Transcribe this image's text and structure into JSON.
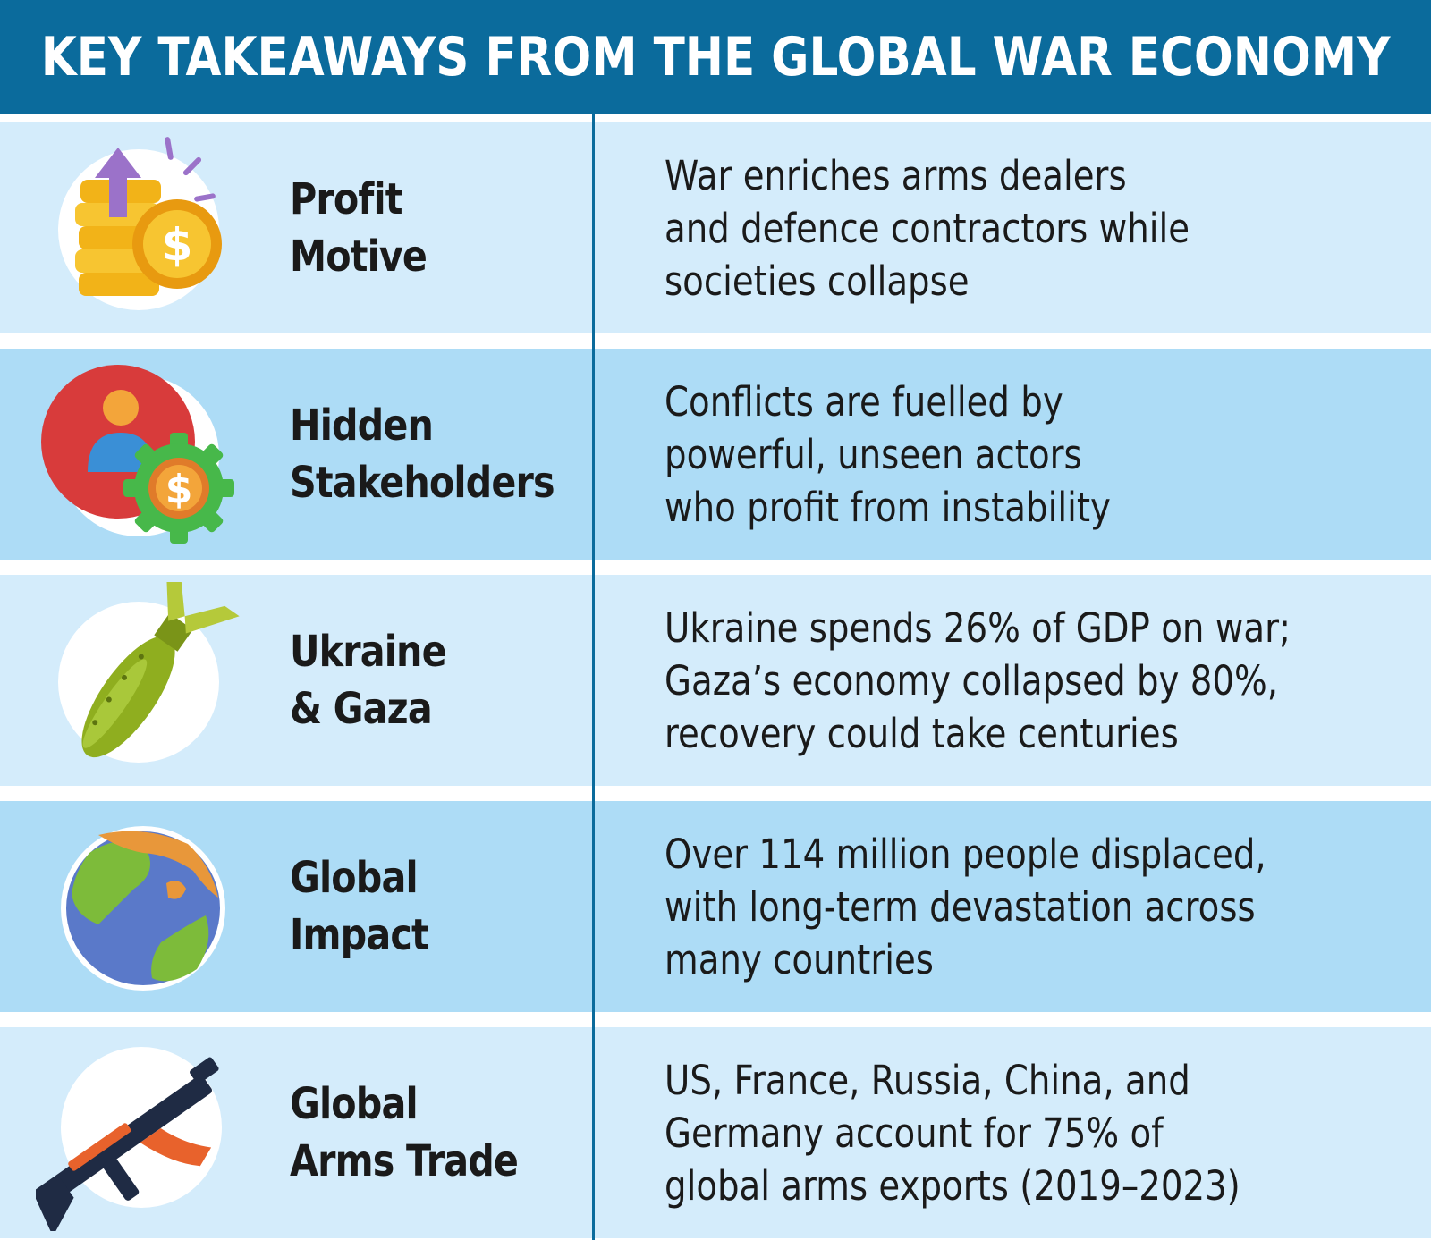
{
  "title": "KEY TAKEAWAYS FROM THE GLOBAL WAR ECONOMY",
  "rows": [
    {
      "icon": "coins-arrow-up-icon",
      "label": [
        "Profit",
        "Motive"
      ],
      "desc": [
        "War enriches arms dealers",
        "and defence contractors while",
        "societies collapse"
      ]
    },
    {
      "icon": "person-gear-dollar-icon",
      "label": [
        "Hidden",
        "Stakeholders"
      ],
      "desc": [
        "Conflicts are fuelled by",
        "powerful, unseen actors",
        "who profit from instability"
      ]
    },
    {
      "icon": "bomb-icon",
      "label": [
        "Ukraine",
        "& Gaza"
      ],
      "desc": [
        "Ukraine spends 26% of GDP on war;",
        "Gaza’s economy collapsed by 80%,",
        "recovery could take centuries"
      ]
    },
    {
      "icon": "globe-icon",
      "label": [
        "Global",
        "Impact"
      ],
      "desc": [
        "Over 114 million people displaced,",
        "with long-term devastation across",
        "many countries"
      ]
    },
    {
      "icon": "rifle-icon",
      "label": [
        "Global",
        "Arms Trade"
      ],
      "desc": [
        "US, France, Russia, China, and",
        "Germany account for 75% of",
        "global arms exports (2019–2023)"
      ]
    }
  ],
  "colors": {
    "header": "#0b6b9c",
    "row_light": "#d4ecfb",
    "row_dark": "#addcf6",
    "text": "#1a1a1a"
  }
}
